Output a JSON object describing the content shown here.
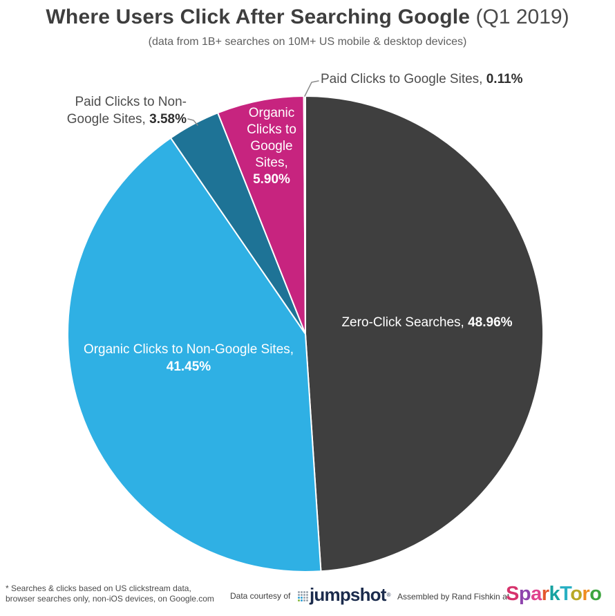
{
  "header": {
    "title_bold": "Where Users Click After Searching Google",
    "title_light": " (Q1 2019)",
    "subtitle": "(data from 1B+ searches on 10M+ US mobile & desktop devices)"
  },
  "chart_data": {
    "type": "pie",
    "title": "Where Users Click After Searching Google (Q1 2019)",
    "subtitle": "data from 1B+ searches on 10M+ US mobile & desktop devices",
    "units": "percent of searches",
    "start_angle_deg": 0,
    "direction": "clockwise",
    "legend_position": "labels-on-slices",
    "slices": [
      {
        "id": "zero-click-searches",
        "label": "Zero-Click Searches",
        "value": 48.96,
        "display": "48.96%",
        "color": "#3f3f3f",
        "label_placement": "inside"
      },
      {
        "id": "organic-clicks-non-google",
        "label": "Organic Clicks to Non-Google Sites",
        "value": 41.45,
        "display": "41.45%",
        "color": "#2fb0e4",
        "label_placement": "inside"
      },
      {
        "id": "paid-clicks-non-google",
        "label": "Paid Clicks to Non-Google Sites",
        "value": 3.58,
        "display": "3.58%",
        "color": "#1e7396",
        "label_placement": "outside"
      },
      {
        "id": "organic-clicks-google",
        "label": "Organic Clicks to Google Sites",
        "value": 5.9,
        "display": "5.90%",
        "color": "#c7247f",
        "label_placement": "inside"
      },
      {
        "id": "paid-clicks-google",
        "label": "Paid Clicks to Google Sites",
        "value": 0.11,
        "display": "0.11%",
        "color": "#d8d8d8",
        "label_placement": "outside"
      }
    ]
  },
  "callouts": {
    "zero_click": {
      "text": "Zero-Click Searches,",
      "pct": "48.96%"
    },
    "organic_non_google": {
      "text": "Organic Clicks to Non-Google Sites,",
      "pct": "41.45%"
    },
    "paid_non_google": {
      "line1": "Paid Clicks to Non-",
      "line2": "Google Sites,",
      "pct": "3.58%"
    },
    "organic_google": {
      "text": "Organic Clicks to Google Sites,",
      "pct": "5.90%"
    },
    "paid_google": {
      "text": "Paid Clicks to Google Sites,",
      "pct": "0.11%"
    }
  },
  "footer": {
    "note_line1": "* Searches & clicks based on US clickstream data,",
    "note_line2": "browser searches only, non-iOS devices, on Google.com",
    "courtesy": "Data courtesy of",
    "jumpshot_word": "jumpshot",
    "jumpshot_reg": "®",
    "jumpshot_color": "#1b2b4c",
    "jumpshot_icon_dots": [
      [
        "#9aa3ae",
        "#9aa3ae",
        "#9aa3ae",
        "#9aa3ae"
      ],
      [
        "#9aa3ae",
        "#9aa3ae",
        "#9aa3ae",
        "#9aa3ae"
      ],
      [
        "#2e9fd4",
        "#2e9fd4",
        "#9aa3ae",
        "#9aa3ae"
      ],
      [
        "#86b940",
        "#2e9fd4",
        "#9aa3ae",
        "#9aa3ae"
      ]
    ],
    "assembled": "Assembled by Rand Fishkin at",
    "sparktoro_letters": [
      {
        "ch": "S",
        "color": "#d6336c"
      },
      {
        "ch": "p",
        "color": "#8e44ad"
      },
      {
        "ch": "a",
        "color": "#e0418e"
      },
      {
        "ch": "r",
        "color": "#e4572e"
      },
      {
        "ch": "k",
        "color": "#17a2a0"
      },
      {
        "ch": "T",
        "color": "#29b0c3"
      },
      {
        "ch": "o",
        "color": "#b9a826"
      },
      {
        "ch": "r",
        "color": "#ef8d22"
      },
      {
        "ch": "o",
        "color": "#3da53f"
      }
    ]
  }
}
